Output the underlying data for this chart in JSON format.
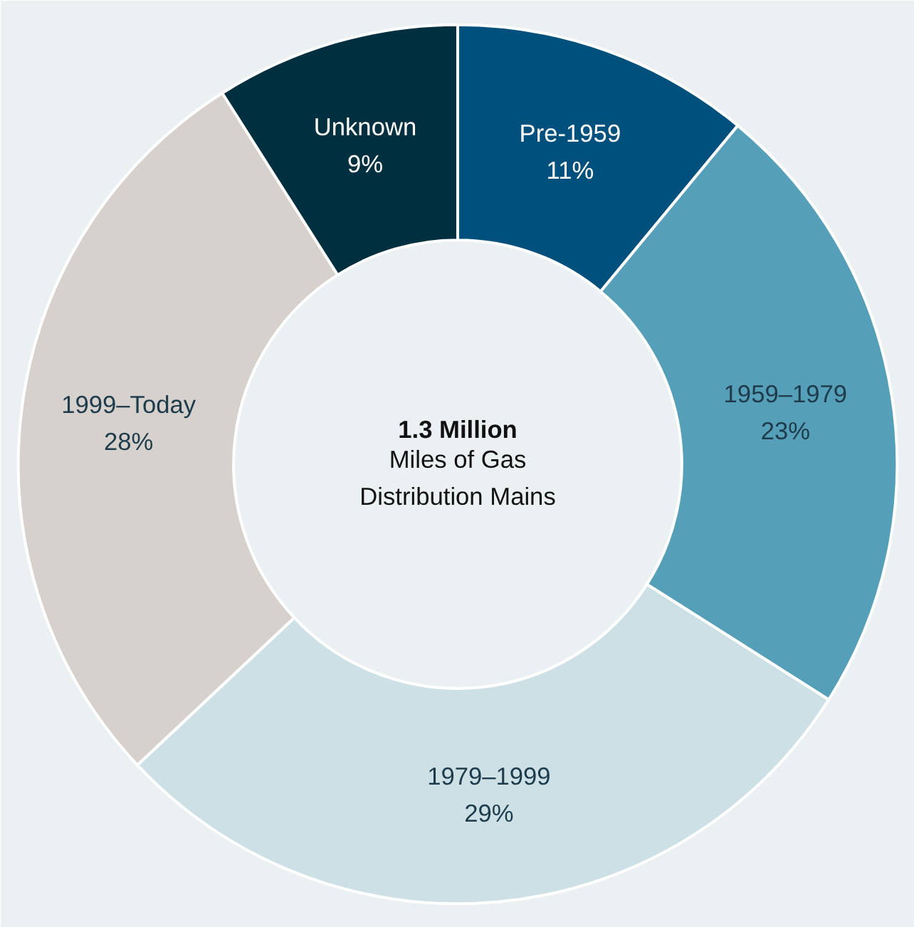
{
  "chart_data": {
    "type": "donut",
    "title": "1.3 Million",
    "subtitle": "Miles of Gas Distribution Mains",
    "categories": [
      "Pre-1959",
      "1959–1979",
      "1979–1999",
      "1999–Today",
      "Unknown"
    ],
    "values": [
      11,
      23,
      29,
      28,
      9
    ],
    "value_labels": [
      "11%",
      "23%",
      "29%",
      "28%",
      "9%"
    ],
    "colors": [
      "#00507d",
      "#569fb8",
      "#cde0e6",
      "#d6d1cc",
      "#00303f"
    ]
  }
}
